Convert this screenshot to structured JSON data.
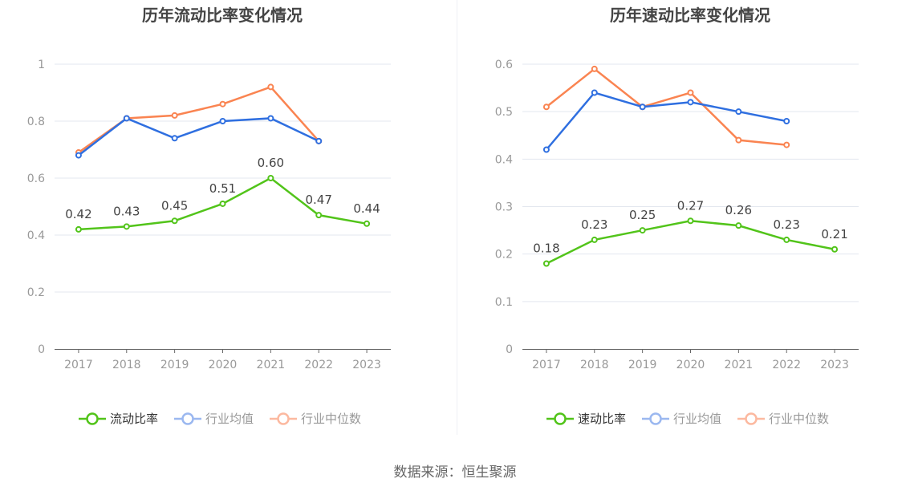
{
  "chart_data": [
    {
      "type": "line",
      "title": "历年流动比率变化情况",
      "categories": [
        "2017",
        "2018",
        "2019",
        "2020",
        "2021",
        "2022",
        "2023"
      ],
      "ylim": [
        0,
        1
      ],
      "yticks": [
        "0",
        "0.2",
        "0.4",
        "0.6",
        "0.8",
        "1"
      ],
      "ytick_values": [
        0,
        0.2,
        0.4,
        0.6,
        0.8,
        1
      ],
      "grid": true,
      "legend_position": "bottom",
      "series": [
        {
          "name": "流动比率",
          "color": "#52c41a",
          "values": [
            0.42,
            0.43,
            0.45,
            0.51,
            0.6,
            0.47,
            0.44
          ],
          "labels": [
            "0.42",
            "0.43",
            "0.45",
            "0.51",
            "0.60",
            "0.47",
            "0.44"
          ]
        },
        {
          "name": "行业均值",
          "color": "#2f6fe0",
          "values": [
            0.68,
            0.81,
            0.74,
            0.8,
            0.81,
            0.73,
            null
          ]
        },
        {
          "name": "行业中位数",
          "color": "#fa8451",
          "values": [
            0.69,
            0.81,
            0.82,
            0.86,
            0.92,
            0.73,
            null
          ]
        }
      ]
    },
    {
      "type": "line",
      "title": "历年速动比率变化情况",
      "categories": [
        "2017",
        "2018",
        "2019",
        "2020",
        "2021",
        "2022",
        "2023"
      ],
      "ylim": [
        0,
        0.6
      ],
      "yticks": [
        "0",
        "0.1",
        "0.2",
        "0.3",
        "0.4",
        "0.5",
        "0.6"
      ],
      "ytick_values": [
        0,
        0.1,
        0.2,
        0.3,
        0.4,
        0.5,
        0.6
      ],
      "grid": true,
      "legend_position": "bottom",
      "series": [
        {
          "name": "速动比率",
          "color": "#52c41a",
          "values": [
            0.18,
            0.23,
            0.25,
            0.27,
            0.26,
            0.23,
            0.21
          ],
          "labels": [
            "0.18",
            "0.23",
            "0.25",
            "0.27",
            "0.26",
            "0.23",
            "0.21"
          ]
        },
        {
          "name": "行业均值",
          "color": "#2f6fe0",
          "values": [
            0.42,
            0.54,
            0.51,
            0.52,
            0.5,
            0.48,
            null
          ]
        },
        {
          "name": "行业中位数",
          "color": "#fa8451",
          "values": [
            0.51,
            0.59,
            0.51,
            0.54,
            0.44,
            0.43,
            null
          ]
        }
      ]
    }
  ],
  "source": "数据来源：恒生聚源"
}
